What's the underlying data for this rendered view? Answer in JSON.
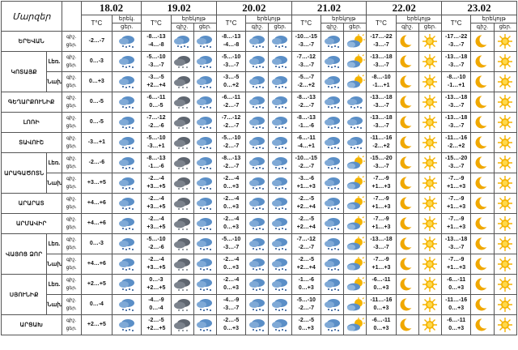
{
  "header": {
    "region_label": "Մարզեր",
    "dates": [
      "18.02",
      "19.02",
      "20.02",
      "21.02",
      "22.02",
      "23.02"
    ],
    "temp_label": "T°C",
    "desc_day": "երեկ.",
    "desc_night": "գիշ.",
    "desc_tomorrow": "երեկոյթ",
    "day_labels": [
      "գիշ.",
      "ցեր."
    ],
    "night_col": "գիշ.",
    "day_col": "ցեր."
  },
  "rows": [
    {
      "name": "ԵՐԵՎԱՆ",
      "sub": "",
      "t": [
        "-2…-7"
      ],
      "days": [
        {
          "n": "-8…-13",
          "d": "-4…-8",
          "i1": "snow-cloud",
          "i2": "snow-cloud"
        },
        {
          "n": "-8…-13",
          "d": "-4…-8",
          "i1": "snow-cloud",
          "i2": "snow-cloud"
        },
        {
          "n": "-10…-15",
          "d": "-3…-7",
          "i1": "snow-cloud",
          "i2": "sun-cloud"
        },
        {
          "n": "-17…-22",
          "d": "-3…-7",
          "i1": "moon",
          "i2": "sun"
        },
        {
          "n": "-17…-22",
          "d": "-3…-7",
          "i1": "moon",
          "i2": "sun"
        }
      ],
      "d18": "-2…-7"
    },
    {
      "name": "ԿՈՏԱՅՔ",
      "sub": "Լեռ.",
      "t": [
        "0…-3"
      ],
      "days": [
        {
          "n": "-5…-10",
          "d": "-3…-7",
          "i1": "dark-cloud",
          "i2": "snow-cloud"
        },
        {
          "n": "-5…-10",
          "d": "-3…-7",
          "i1": "snow-cloud",
          "i2": "snow-cloud"
        },
        {
          "n": "-7…-12",
          "d": "-3…-7",
          "i1": "snow-cloud",
          "i2": "sun-cloud"
        },
        {
          "n": "-13…-18",
          "d": "-3…-7",
          "i1": "moon",
          "i2": "sun"
        },
        {
          "n": "-13…-18",
          "d": "-3…-7",
          "i1": "moon",
          "i2": "sun"
        }
      ],
      "d18": "0…-3"
    },
    {
      "name": "",
      "sub": "Նախ.",
      "t": [
        "0…+3"
      ],
      "days": [
        {
          "n": "-3…-5",
          "d": "+2…+4",
          "i1": "dark-cloud",
          "i2": "snow-cloud"
        },
        {
          "n": "-3…-5",
          "d": "0…+2",
          "i1": "snow-cloud",
          "i2": "snow-cloud"
        },
        {
          "n": "-5…-7",
          "d": "-2…+2",
          "i1": "snow-cloud",
          "i2": "sun-cloud"
        },
        {
          "n": "-8…-10",
          "d": "-1…+1",
          "i1": "moon",
          "i2": "sun"
        },
        {
          "n": "-8…-10",
          "d": "-1…+1",
          "i1": "moon",
          "i2": "sun"
        }
      ],
      "d18": "0…+3"
    },
    {
      "name": "ԳԵՂԱՐՔՈՒՆԻՔ",
      "sub": "",
      "t": [
        "0…-5"
      ],
      "days": [
        {
          "n": "-6…-11",
          "d": "0…-5",
          "i1": "dark-cloud",
          "i2": "snow-cloud"
        },
        {
          "n": "-6…-11",
          "d": "-2…-7",
          "i1": "snow-cloud",
          "i2": "snow-cloud"
        },
        {
          "n": "-8…-13",
          "d": "-2…-7",
          "i1": "snow-cloud",
          "i2": "snow-cloud"
        },
        {
          "n": "-13…-18",
          "d": "-3…-7",
          "i1": "moon",
          "i2": "sun"
        },
        {
          "n": "-13…-18",
          "d": "-3…-7",
          "i1": "moon",
          "i2": "sun"
        }
      ],
      "d18": "0…-5"
    },
    {
      "name": "ԼՈՌԻ",
      "sub": "",
      "t": [
        "0…-5"
      ],
      "days": [
        {
          "n": "-7…-12",
          "d": "-2…-6",
          "i1": "dark-cloud",
          "i2": "snow-cloud"
        },
        {
          "n": "-7…-12",
          "d": "-2…-7",
          "i1": "snow-cloud",
          "i2": "snow-cloud"
        },
        {
          "n": "-8…-13",
          "d": "-1…-6",
          "i1": "snow-cloud",
          "i2": "snow-cloud"
        },
        {
          "n": "-13…-18",
          "d": "-3…-7",
          "i1": "moon",
          "i2": "sun"
        },
        {
          "n": "-13…-18",
          "d": "-3…-7",
          "i1": "moon",
          "i2": "sun"
        }
      ],
      "d18": "0…-5"
    },
    {
      "name": "ՏԱՎՈՒՇ",
      "sub": "",
      "t": [
        "-3…+1"
      ],
      "days": [
        {
          "n": "-5…-10",
          "d": "-3…+1",
          "i1": "dark-cloud",
          "i2": "snow-cloud"
        },
        {
          "n": "-5…-10",
          "d": "-2…-7",
          "i1": "snow-cloud",
          "i2": "snow-cloud"
        },
        {
          "n": "-6…-11",
          "d": "-4…+1",
          "i1": "snow-cloud",
          "i2": "snow-cloud"
        },
        {
          "n": "-11…-16",
          "d": "-2…+2",
          "i1": "moon",
          "i2": "sun"
        },
        {
          "n": "-11…-16",
          "d": "-2…+2",
          "i1": "moon",
          "i2": "sun"
        }
      ],
      "d18": "-3…+1"
    },
    {
      "name": "ԱՐԱԳԱԾՈՏՆ",
      "sub": "Լեռ.",
      "t": [
        "-2…-6"
      ],
      "days": [
        {
          "n": "-8…-13",
          "d": "-1…-6",
          "i1": "dark-cloud",
          "i2": "snow-cloud"
        },
        {
          "n": "-8…-13",
          "d": "-2…-7",
          "i1": "snow-cloud",
          "i2": "snow-cloud"
        },
        {
          "n": "-10…-15",
          "d": "-2…-7",
          "i1": "snow-cloud",
          "i2": "sun-cloud"
        },
        {
          "n": "-15…-20",
          "d": "-3…-7",
          "i1": "moon",
          "i2": "sun"
        },
        {
          "n": "-15…-20",
          "d": "-3…-7",
          "i1": "moon",
          "i2": "sun"
        }
      ],
      "d18": "-2…-6"
    },
    {
      "name": "",
      "sub": "Նախ.",
      "t": [
        "+3…+5"
      ],
      "days": [
        {
          "n": "-2…-4",
          "d": "+3…+5",
          "i1": "dark-cloud",
          "i2": "snow-cloud"
        },
        {
          "n": "-2…-4",
          "d": "0…+3",
          "i1": "snow-cloud",
          "i2": "snow-cloud"
        },
        {
          "n": "-3…-6",
          "d": "+1…+3",
          "i1": "snow-cloud",
          "i2": "sun-cloud"
        },
        {
          "n": "-7…-9",
          "d": "+1…+3",
          "i1": "moon",
          "i2": "sun"
        },
        {
          "n": "-7…-9",
          "d": "+1…+3",
          "i1": "moon",
          "i2": "sun"
        }
      ],
      "d18": "+3…+5"
    },
    {
      "name": "ԱՐԱՐԱՏ",
      "sub": "",
      "t": [
        "+4…+6"
      ],
      "days": [
        {
          "n": "-2…-4",
          "d": "+3…+5",
          "i1": "dark-cloud",
          "i2": "snow-cloud"
        },
        {
          "n": "-2…-4",
          "d": "0…+3",
          "i1": "snow-cloud",
          "i2": "snow-cloud"
        },
        {
          "n": "-2…-5",
          "d": "+2…+4",
          "i1": "snow-cloud",
          "i2": "sun-cloud"
        },
        {
          "n": "-7…-9",
          "d": "+1…+3",
          "i1": "moon",
          "i2": "sun"
        },
        {
          "n": "-7…-9",
          "d": "+1…+3",
          "i1": "moon",
          "i2": "sun"
        }
      ],
      "d18": "+4…+6"
    },
    {
      "name": "ԱՐՄԱՎԻՐ",
      "sub": "",
      "t": [
        "+4…+6"
      ],
      "days": [
        {
          "n": "-2…-4",
          "d": "+3…+5",
          "i1": "dark-cloud",
          "i2": "snow-cloud"
        },
        {
          "n": "-2…-4",
          "d": "0…+3",
          "i1": "snow-cloud",
          "i2": "snow-cloud"
        },
        {
          "n": "-2…-5",
          "d": "+2…+4",
          "i1": "snow-cloud",
          "i2": "sun-cloud"
        },
        {
          "n": "-7…-9",
          "d": "+1…+3",
          "i1": "moon",
          "i2": "sun"
        },
        {
          "n": "-7…-9",
          "d": "+1…+3",
          "i1": "moon",
          "i2": "sun"
        }
      ],
      "d18": "+4…+6"
    },
    {
      "name": "ՎԱՅՈՑ ՁՈՐ",
      "sub": "Լեռ.",
      "t": [
        "0…-3"
      ],
      "days": [
        {
          "n": "-5…-10",
          "d": "-2…-6",
          "i1": "dark-cloud",
          "i2": "snow-cloud"
        },
        {
          "n": "-5…-10",
          "d": "-3…-7",
          "i1": "snow-cloud",
          "i2": "snow-cloud"
        },
        {
          "n": "-7…-12",
          "d": "-2…-7",
          "i1": "snow-cloud",
          "i2": "sun-cloud"
        },
        {
          "n": "-13…-18",
          "d": "-3…-7",
          "i1": "moon",
          "i2": "sun"
        },
        {
          "n": "-13…-18",
          "d": "-3…-7",
          "i1": "moon",
          "i2": "sun"
        }
      ],
      "d18": "0…-3"
    },
    {
      "name": "",
      "sub": "Նախ.",
      "t": [
        "+4…+6"
      ],
      "days": [
        {
          "n": "-2…-4",
          "d": "+3…+5",
          "i1": "dark-cloud",
          "i2": "snow-cloud"
        },
        {
          "n": "-2…-4",
          "d": "0…+3",
          "i1": "snow-cloud",
          "i2": "snow-cloud"
        },
        {
          "n": "-2…-5",
          "d": "+2…+4",
          "i1": "snow-cloud",
          "i2": "sun-cloud"
        },
        {
          "n": "-7…-9",
          "d": "+1…+3",
          "i1": "moon",
          "i2": "sun"
        },
        {
          "n": "-7…-9",
          "d": "+1…+3",
          "i1": "moon",
          "i2": "sun"
        }
      ],
      "d18": "+4…+6"
    },
    {
      "name": "ՍՅՈՒՆԻՔ",
      "sub": "Լեռ.",
      "t": [
        "+2…+5"
      ],
      "days": [
        {
          "n": "0…-3",
          "d": "+2…+5",
          "i1": "dark-cloud",
          "i2": "snow-cloud"
        },
        {
          "n": "-2…-4",
          "d": "0…+3",
          "i1": "snow-cloud",
          "i2": "snow-cloud"
        },
        {
          "n": "-1…-6",
          "d": "0…+3",
          "i1": "snow-cloud",
          "i2": "sun-cloud"
        },
        {
          "n": "-6…-11",
          "d": "0…+3",
          "i1": "moon",
          "i2": "sun"
        },
        {
          "n": "-6…-11",
          "d": "0…+3",
          "i1": "moon",
          "i2": "sun"
        }
      ],
      "d18": "+2…+5"
    },
    {
      "name": "",
      "sub": "Նախ.",
      "t": [
        "0…-4"
      ],
      "days": [
        {
          "n": "-4…-9",
          "d": "0…-4",
          "i1": "dark-cloud",
          "i2": "snow-cloud"
        },
        {
          "n": "-4…-9",
          "d": "-3…-7",
          "i1": "snow-cloud",
          "i2": "snow-cloud"
        },
        {
          "n": "-5…-10",
          "d": "-2…-7",
          "i1": "snow-cloud",
          "i2": "sun-cloud"
        },
        {
          "n": "-11…-16",
          "d": "0…+3",
          "i1": "moon",
          "i2": "sun"
        },
        {
          "n": "-11…-16",
          "d": "0…+3",
          "i1": "moon",
          "i2": "sun"
        }
      ],
      "d18": "0…-4"
    },
    {
      "name": "ԱՐՑԱԽ",
      "sub": "",
      "t": [
        "+2…+5"
      ],
      "days": [
        {
          "n": "-2…-5",
          "d": "+2…+5",
          "i1": "dark-cloud",
          "i2": "snow-cloud"
        },
        {
          "n": "-2…-5",
          "d": "0…+3",
          "i1": "snow-cloud",
          "i2": "snow-cloud"
        },
        {
          "n": "-2…-5",
          "d": "0…+3",
          "i1": "snow-cloud",
          "i2": "sun-cloud"
        },
        {
          "n": "-6…-11",
          "d": "0…+3",
          "i1": "moon",
          "i2": "sun"
        },
        {
          "n": "-6…-11",
          "d": "0…+3",
          "i1": "moon",
          "i2": "sun"
        }
      ],
      "d18": "+2…+5"
    }
  ],
  "colors": {
    "border": "#555555",
    "sun": "#f5b400",
    "moon": "#f0a800",
    "cloud_dark": "#5f6670",
    "cloud_blue": "#5b8fc7",
    "snow": "#1f4f8f"
  }
}
